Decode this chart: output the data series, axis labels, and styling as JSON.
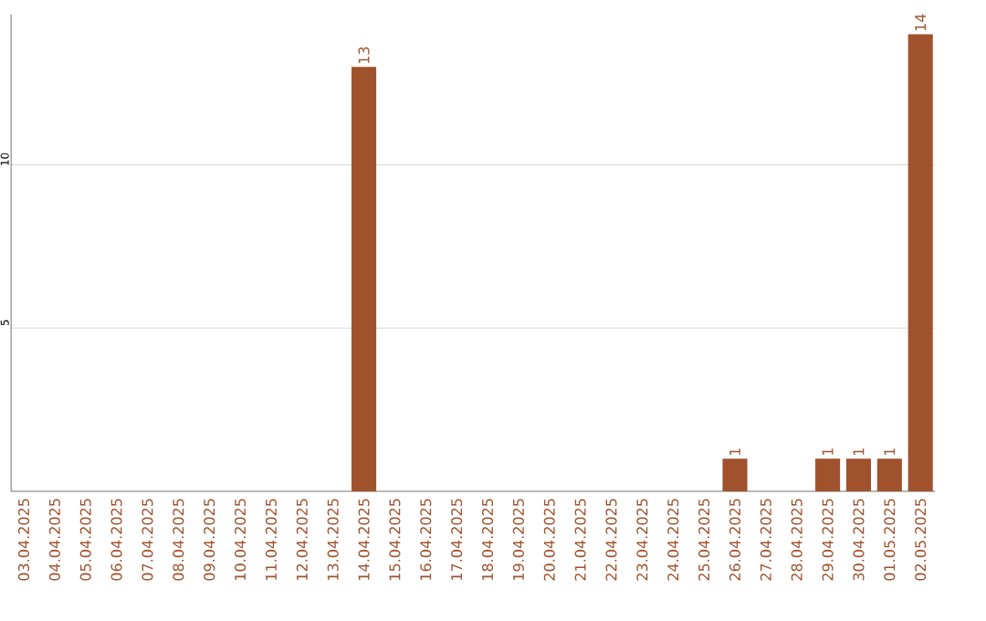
{
  "chart_data": {
    "type": "bar",
    "categories": [
      "03.04.2025",
      "04.04.2025",
      "05.04.2025",
      "06.04.2025",
      "07.04.2025",
      "08.04.2025",
      "09.04.2025",
      "10.04.2025",
      "11.04.2025",
      "12.04.2025",
      "13.04.2025",
      "14.04.2025",
      "15.04.2025",
      "16.04.2025",
      "17.04.2025",
      "18.04.2025",
      "19.04.2025",
      "20.04.2025",
      "21.04.2025",
      "22.04.2025",
      "23.04.2025",
      "24.04.2025",
      "25.04.2025",
      "26.04.2025",
      "27.04.2025",
      "28.04.2025",
      "29.04.2025",
      "30.04.2025",
      "01.05.2025",
      "02.05.2025"
    ],
    "values": [
      0,
      0,
      0,
      0,
      0,
      0,
      0,
      0,
      0,
      0,
      0,
      13,
      0,
      0,
      0,
      0,
      0,
      0,
      0,
      0,
      0,
      0,
      0,
      1,
      0,
      0,
      1,
      1,
      1,
      14
    ],
    "value_labels": [
      null,
      null,
      null,
      null,
      null,
      null,
      null,
      null,
      null,
      null,
      null,
      "13",
      null,
      null,
      null,
      null,
      null,
      null,
      null,
      null,
      null,
      null,
      null,
      "1",
      null,
      null,
      "1",
      "1",
      "1",
      "14"
    ],
    "color": "#a0522d",
    "ylim": [
      0,
      14.6
    ],
    "yticks": [
      5,
      10
    ],
    "grid": "y"
  }
}
